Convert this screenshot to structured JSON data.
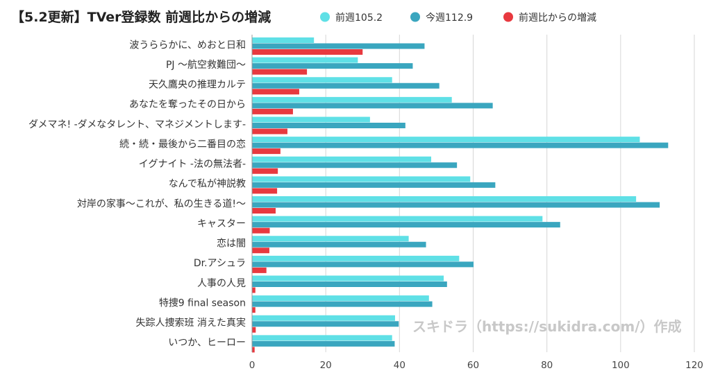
{
  "chart_data": {
    "type": "bar",
    "orientation": "horizontal",
    "title": "【5.2更新】TVer登録数 前週比からの増減",
    "categories": [
      "波うららかに、めおと日和",
      "PJ ～航空救難団～",
      "天久鷹央の推理カルテ",
      "あなたを奪ったその日から",
      "ダメマネ! -ダメなタレント、マネジメントします-",
      "続・続・最後から二番目の恋",
      "イグナイト -法の無法者-",
      "なんで私が神説教",
      "対岸の家事～これが、私の生きる道!～",
      "キャスター",
      "恋は闇",
      "Dr.アシュラ",
      "人事の人見",
      "特捜9 final season",
      "失踪人捜索班 消えた真実",
      "いつか、ヒーロー"
    ],
    "series": [
      {
        "name": "前週105.2",
        "color": "#5fe0e6",
        "values": [
          16.8,
          28.7,
          38.0,
          54.2,
          32.0,
          105.2,
          48.6,
          59.2,
          104.2,
          78.8,
          42.5,
          56.2,
          52.0,
          48.0,
          38.8,
          38.0
        ]
      },
      {
        "name": "今週112.9",
        "color": "#3aa6bf",
        "values": [
          46.8,
          43.6,
          50.8,
          65.3,
          41.6,
          112.9,
          55.6,
          66.0,
          110.6,
          83.6,
          47.2,
          60.1,
          52.9,
          48.9,
          39.8,
          38.7
        ]
      },
      {
        "name": "前週比からの増減",
        "color": "#e8393f",
        "values": [
          30.0,
          14.9,
          12.8,
          11.1,
          9.6,
          7.7,
          7.0,
          6.8,
          6.4,
          4.8,
          4.7,
          3.9,
          0.9,
          0.9,
          1.0,
          0.7
        ]
      }
    ],
    "x_ticks": [
      0,
      20,
      40,
      60,
      80,
      100,
      120
    ],
    "xlim": [
      0,
      120
    ],
    "grid": true,
    "legend_position": "top"
  },
  "watermark": "スキドラ（https://sukidra.com/）作成"
}
